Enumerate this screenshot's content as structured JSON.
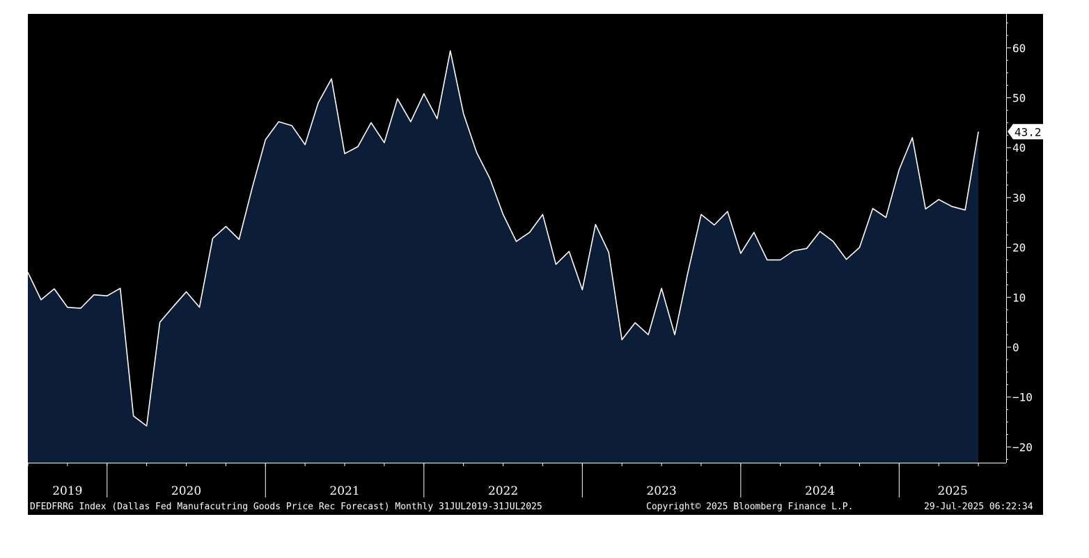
{
  "chart_data": {
    "type": "area",
    "series": [
      {
        "x": [
          "2019-07",
          "2019-08",
          "2019-09",
          "2019-10",
          "2019-11",
          "2019-12",
          "2020-01",
          "2020-02",
          "2020-03",
          "2020-04",
          "2020-05",
          "2020-06",
          "2020-07",
          "2020-08",
          "2020-09",
          "2020-10",
          "2020-11",
          "2020-12",
          "2021-01",
          "2021-02",
          "2021-03",
          "2021-04",
          "2021-05",
          "2021-06",
          "2021-07",
          "2021-08",
          "2021-09",
          "2021-10",
          "2021-11",
          "2021-12",
          "2022-01",
          "2022-02",
          "2022-03",
          "2022-04",
          "2022-05",
          "2022-06",
          "2022-07",
          "2022-08",
          "2022-09",
          "2022-10",
          "2022-11",
          "2022-12",
          "2023-01",
          "2023-02",
          "2023-03",
          "2023-04",
          "2023-05",
          "2023-06",
          "2023-07",
          "2023-08",
          "2023-09",
          "2023-10",
          "2023-11",
          "2023-12",
          "2024-01",
          "2024-02",
          "2024-03",
          "2024-04",
          "2024-05",
          "2024-06",
          "2024-07",
          "2024-08",
          "2024-09",
          "2024-10",
          "2024-11",
          "2024-12",
          "2025-01",
          "2025-02",
          "2025-03",
          "2025-04",
          "2025-05",
          "2025-06",
          "2025-07"
        ],
        "values": [
          15.0,
          9.5,
          11.7,
          8.0,
          7.8,
          10.5,
          10.3,
          11.8,
          -13.8,
          -15.8,
          5.0,
          8.1,
          11.1,
          8.0,
          21.8,
          24.2,
          21.6,
          32.0,
          41.6,
          45.2,
          44.4,
          40.6,
          49.0,
          53.8,
          38.8,
          40.2,
          45.0,
          41.0,
          49.8,
          45.2,
          50.8,
          45.8,
          59.4,
          46.8,
          39.0,
          33.8,
          26.6,
          21.2,
          23.0,
          26.6,
          16.6,
          19.2,
          11.5,
          24.6,
          19.0,
          1.5,
          4.9,
          2.5,
          11.8,
          2.5,
          15.0,
          26.6,
          24.5,
          27.2,
          18.8,
          23.0,
          17.5,
          17.5,
          19.3,
          19.8,
          23.2,
          21.2,
          17.6,
          20.0,
          27.8,
          26.0,
          35.6,
          42.0,
          27.7,
          29.6,
          28.2,
          27.5,
          43.2
        ]
      }
    ],
    "last_value_label": "43.2",
    "ylim": [
      -23,
      67
    ],
    "yticks": [
      -20,
      -10,
      0,
      10,
      20,
      30,
      40,
      50,
      60
    ],
    "xaxis_years": [
      "2019",
      "2020",
      "2021",
      "2022",
      "2023",
      "2024",
      "2025"
    ],
    "grid": false,
    "colors": {
      "background": "#000000",
      "area_fill": "#0c1d38",
      "line": "#ffffff",
      "axis": "#ffffff"
    }
  },
  "footer": {
    "description": "DFEDFRRG Index (Dallas Fed Manufacutring Goods Price Rec Forecast) Monthly 31JUL2019-31JUL2025",
    "copyright": "Copyright© 2025 Bloomberg Finance L.P.",
    "timestamp": "29-Jul-2025 06:22:34"
  }
}
